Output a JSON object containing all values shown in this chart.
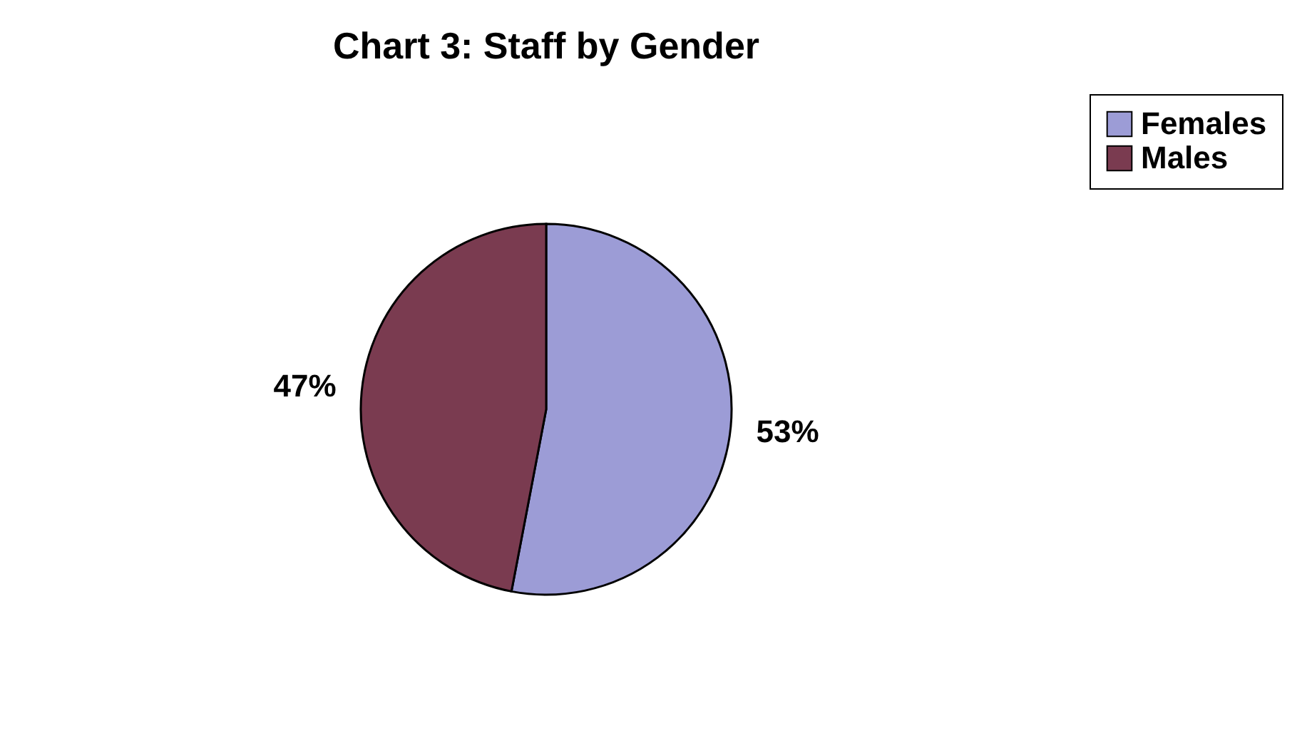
{
  "chart_data": {
    "type": "pie",
    "title": "Chart 3: Staff by Gender",
    "categories": [
      "Females",
      "Males"
    ],
    "values": [
      53,
      47
    ],
    "colors": [
      "#9c9cd6",
      "#7a3b50"
    ],
    "value_labels": [
      "53%",
      "47%"
    ],
    "legend": "right"
  }
}
